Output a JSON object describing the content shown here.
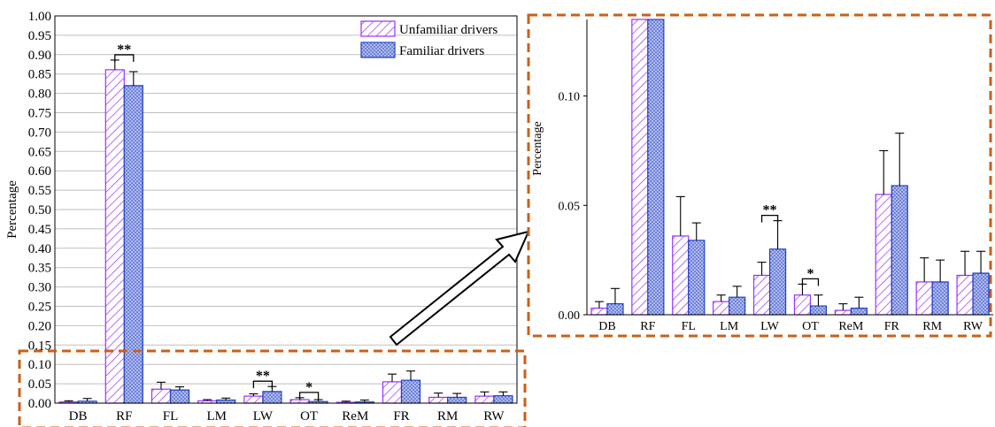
{
  "chart_data": {
    "type": "bar",
    "ylabel": "Percentage",
    "categories": [
      "DB",
      "RF",
      "FL",
      "LM",
      "LW",
      "OT",
      "ReM",
      "FR",
      "RM",
      "RW"
    ],
    "series": [
      {
        "name": "Unfamiliar drivers",
        "values": [
          0.003,
          0.861,
          0.036,
          0.006,
          0.018,
          0.009,
          0.002,
          0.055,
          0.015,
          0.018
        ],
        "errors": [
          0.003,
          0.025,
          0.018,
          0.003,
          0.006,
          0.005,
          0.003,
          0.02,
          0.011,
          0.011
        ]
      },
      {
        "name": "Familiar drivers",
        "values": [
          0.005,
          0.82,
          0.034,
          0.008,
          0.03,
          0.004,
          0.003,
          0.059,
          0.015,
          0.019
        ],
        "errors": [
          0.007,
          0.036,
          0.008,
          0.005,
          0.013,
          0.005,
          0.005,
          0.024,
          0.01,
          0.01
        ]
      }
    ],
    "main_ylim": [
      0,
      1.0
    ],
    "main_yticks": [
      "0.00",
      "0.05",
      "0.10",
      "0.15",
      "0.20",
      "0.25",
      "0.30",
      "0.35",
      "0.40",
      "0.45",
      "0.50",
      "0.55",
      "0.60",
      "0.65",
      "0.70",
      "0.75",
      "0.80",
      "0.85",
      "0.90",
      "0.95",
      "1.00"
    ],
    "inset_ylim": [
      0,
      0.135
    ],
    "inset_yticks": [
      "0.00",
      "0.05",
      "0.10"
    ],
    "significance": [
      {
        "category": "RF",
        "label": "**",
        "chart": "main"
      },
      {
        "category": "LW",
        "label": "**",
        "chart": "main"
      },
      {
        "category": "OT",
        "label": "*",
        "chart": "main"
      },
      {
        "category": "LW",
        "label": "**",
        "chart": "inset"
      },
      {
        "category": "OT",
        "label": "*",
        "chart": "inset"
      }
    ],
    "legend_position": "top-right",
    "grid": true,
    "colors": {
      "unfamiliar": "#9b30ff",
      "familiar": "#1f3fbf",
      "familiar_fill": "#7f8fe0",
      "highlight": "#c8601a",
      "grid": "#bfbfbf"
    }
  }
}
